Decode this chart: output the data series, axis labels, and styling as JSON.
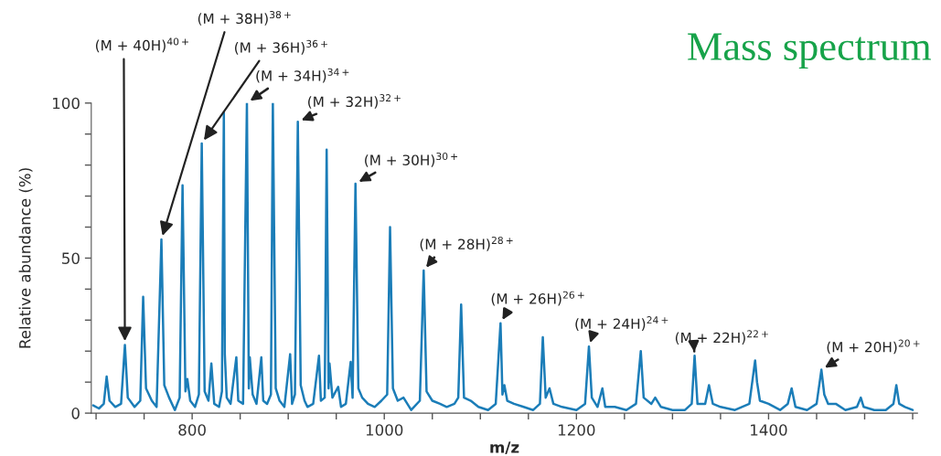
{
  "chart_data": {
    "type": "line",
    "title": "Mass spectrum",
    "xlabel": "m/z",
    "ylabel": "Relative abundance (%)",
    "xlim": [
      695,
      1555
    ],
    "ylim": [
      0,
      100
    ],
    "xticks": [
      {
        "value": 700,
        "label": null
      },
      {
        "value": 750,
        "label": null
      },
      800,
      {
        "value": 850,
        "label": null
      },
      {
        "value": 900,
        "label": null
      },
      {
        "value": 950,
        "label": null
      },
      1000,
      {
        "value": 1050,
        "label": null
      },
      {
        "value": 1100,
        "label": null
      },
      {
        "value": 1150,
        "label": null
      },
      1200,
      {
        "value": 1250,
        "label": null
      },
      {
        "value": 1300,
        "label": null
      },
      {
        "value": 1350,
        "label": null
      },
      1400,
      {
        "value": 1450,
        "label": null
      },
      {
        "value": 1500,
        "label": null
      },
      {
        "value": 1550,
        "label": null
      }
    ],
    "yticks": [
      0,
      {
        "value": 10,
        "label": null
      },
      {
        "value": 20,
        "label": null
      },
      {
        "value": 30,
        "label": null
      },
      {
        "value": 40,
        "label": null
      },
      50,
      {
        "value": 60,
        "label": null
      },
      {
        "value": 70,
        "label": null
      },
      {
        "value": 80,
        "label": null
      },
      {
        "value": 90,
        "label": null
      },
      100
    ],
    "grid": false,
    "legend": false,
    "marker": "none",
    "line_style": "solid",
    "series": [
      {
        "color": "#1b7db8",
        "x": [
          697,
          703,
          708,
          711,
          714,
          720,
          726,
          730,
          733,
          740,
          746,
          749,
          752,
          758,
          763,
          768,
          771,
          776,
          782,
          787,
          790,
          793,
          795,
          798,
          803,
          807,
          810,
          813,
          817,
          820,
          823,
          828,
          831,
          833,
          834,
          836,
          840,
          846,
          848,
          853,
          857,
          859,
          860,
          863,
          867,
          872,
          874,
          878,
          882,
          884,
          887,
          891,
          896,
          902,
          904,
          907,
          910,
          913,
          917,
          920,
          926,
          932,
          934,
          938,
          940,
          942,
          943,
          946,
          952,
          955,
          960,
          965,
          967,
          970,
          973,
          977,
          983,
          990,
          997,
          1003,
          1006,
          1009,
          1014,
          1020,
          1028,
          1037,
          1041,
          1044,
          1050,
          1058,
          1065,
          1073,
          1077,
          1080,
          1083,
          1090,
          1098,
          1108,
          1116,
          1121,
          1123,
          1125,
          1128,
          1135,
          1145,
          1155,
          1162,
          1165,
          1168,
          1172,
          1176,
          1185,
          1200,
          1209,
          1213,
          1216,
          1222,
          1227,
          1230,
          1240,
          1252,
          1262,
          1267,
          1270,
          1278,
          1282,
          1288,
          1300,
          1313,
          1320,
          1323,
          1326,
          1334,
          1338,
          1342,
          1350,
          1365,
          1380,
          1386,
          1388,
          1391,
          1400,
          1412,
          1420,
          1424,
          1428,
          1440,
          1450,
          1455,
          1458,
          1462,
          1470,
          1480,
          1492,
          1496,
          1499,
          1510,
          1522,
          1530,
          1533,
          1536,
          1542,
          1550
        ],
        "values": [
          2.5,
          1.5,
          3,
          11.8,
          4,
          2,
          3,
          22,
          5,
          2,
          4,
          37.5,
          8,
          4,
          2,
          56,
          9,
          5,
          1,
          5,
          73.5,
          7,
          11,
          4,
          2,
          6,
          87,
          7,
          4,
          16,
          3,
          2,
          7,
          97,
          19,
          5,
          3,
          18,
          4,
          3,
          100,
          8,
          18,
          6,
          3,
          18,
          4,
          3,
          6,
          100,
          8,
          4,
          2,
          19,
          3,
          6,
          94,
          9,
          4,
          2,
          3,
          18.5,
          4,
          5,
          85,
          8,
          16,
          5,
          8.5,
          2,
          3,
          16.5,
          5,
          74,
          8,
          5,
          3,
          2,
          4,
          6,
          60,
          8,
          4,
          5,
          1,
          4,
          46,
          7,
          4,
          3,
          2,
          3,
          5,
          35,
          5,
          4,
          2,
          1,
          3,
          29,
          6,
          9,
          4,
          3,
          2,
          1,
          3,
          24.5,
          5,
          8,
          3,
          2,
          1,
          3,
          21.5,
          5,
          2,
          8,
          2,
          2,
          1,
          3,
          20,
          5,
          3,
          5,
          2,
          1,
          1,
          3,
          18.5,
          3,
          3,
          9,
          3,
          2,
          1,
          3,
          17,
          10,
          4,
          3,
          1,
          3,
          8,
          2,
          1,
          3,
          14,
          6,
          3,
          3,
          1,
          2,
          5,
          2,
          1,
          1,
          3,
          9,
          3,
          2,
          1
        ]
      }
    ],
    "annotations": [
      {
        "text": "(M + 40H)$^{40+}$",
        "x": 730,
        "y": 22
      },
      {
        "text": "(M + 38H)$^{38+}$",
        "x": 768,
        "y": 56
      },
      {
        "text": "(M + 36H)$^{36+}$",
        "x": 810,
        "y": 87
      },
      {
        "text": "(M + 34H)$^{34+}$",
        "x": 857,
        "y": 100
      },
      {
        "text": "(M + 32H)$^{32+}$",
        "x": 910,
        "y": 94
      },
      {
        "text": "(M + 30H)$^{30+}$",
        "x": 970,
        "y": 74
      },
      {
        "text": "(M + 28H)$^{28+}$",
        "x": 1041,
        "y": 46
      },
      {
        "text": "(M + 26H)$^{26+}$",
        "x": 1121,
        "y": 29
      },
      {
        "text": "(M + 24H)$^{24+}$",
        "x": 1213,
        "y": 21.5
      },
      {
        "text": "(M + 22H)$^{22+}$",
        "x": 1323,
        "y": 18.5
      },
      {
        "text": "(M + 20H)$^{20+}$",
        "x": 1455,
        "y": 14
      }
    ]
  }
}
